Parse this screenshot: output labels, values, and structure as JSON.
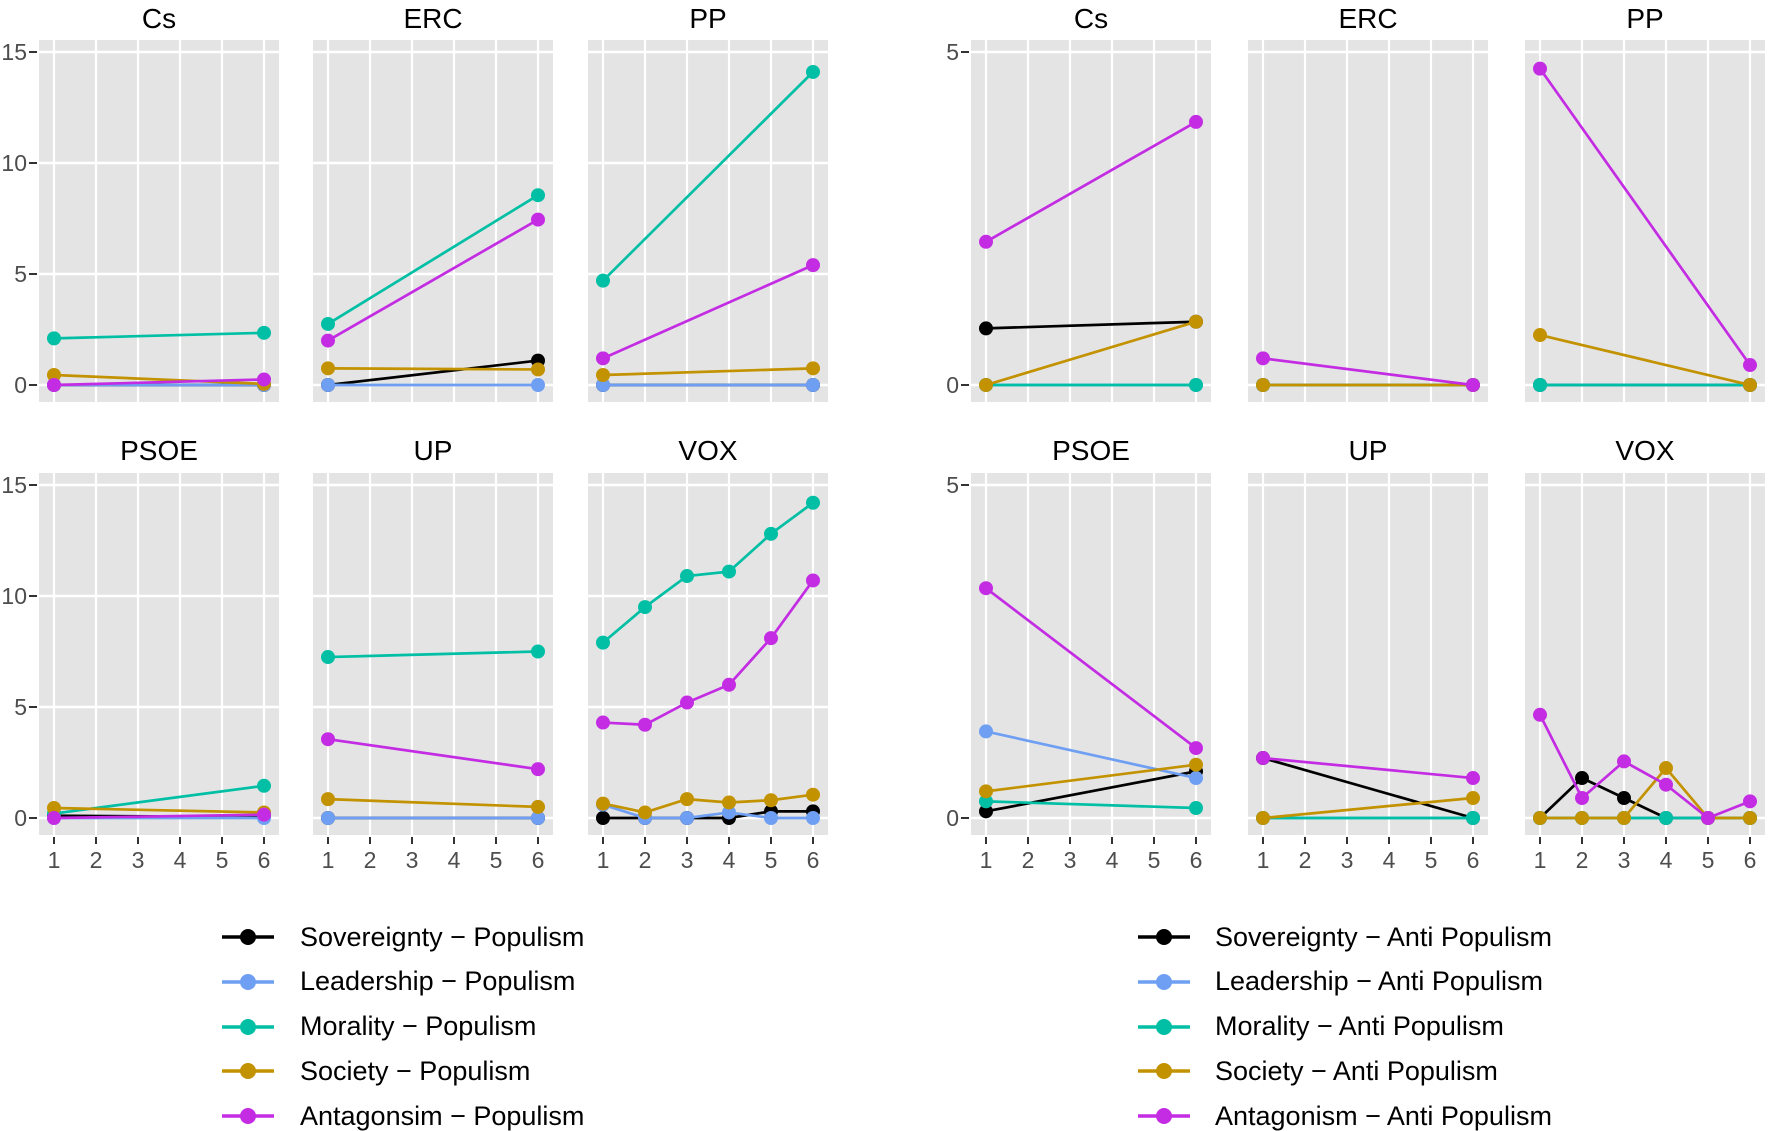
{
  "colors": {
    "sovereignty": "#000000",
    "leadership": "#6F9FF3",
    "morality": "#00BFA4",
    "society": "#C39200",
    "antagonism": "#C32CE3"
  },
  "style": {
    "panel_bg": "#E4E4E4",
    "grid_color": "#FFFFFF",
    "tick_text_color": "#4D4D4D"
  },
  "draw_order": [
    "sovereignty",
    "leadership",
    "morality",
    "society",
    "antagonism"
  ],
  "chart_data": [
    {
      "type": "line",
      "group": "Populism",
      "ylim": [
        0,
        15
      ],
      "yticks": [
        0,
        5,
        10,
        15
      ],
      "xticks": [
        1,
        2,
        3,
        4,
        5,
        6
      ],
      "grid": "major-only",
      "legend_position": "bottom-left",
      "legend": [
        {
          "key": "sovereignty",
          "label": "Sovereignty − Populism"
        },
        {
          "key": "leadership",
          "label": "Leadership − Populism"
        },
        {
          "key": "morality",
          "label": "Morality − Populism"
        },
        {
          "key": "society",
          "label": "Society − Populism"
        },
        {
          "key": "antagonism",
          "label": "Antagonsim − Populism"
        }
      ],
      "panels": [
        {
          "title": "Cs",
          "x": [
            1,
            6
          ],
          "series": {
            "sovereignty": [
              0,
              0
            ],
            "leadership": [
              0,
              0
            ],
            "morality": [
              2.1,
              2.35
            ],
            "society": [
              0.45,
              0.05
            ],
            "antagonism": [
              0,
              0.25
            ]
          }
        },
        {
          "title": "ERC",
          "x": [
            1,
            6
          ],
          "series": {
            "sovereignty": [
              0,
              1.1
            ],
            "leadership": [
              0,
              0
            ],
            "morality": [
              2.75,
              8.55
            ],
            "society": [
              0.75,
              0.7
            ],
            "antagonism": [
              2.0,
              7.45
            ]
          }
        },
        {
          "title": "PP",
          "x": [
            1,
            6
          ],
          "series": {
            "sovereignty": [
              0,
              0
            ],
            "leadership": [
              0,
              0
            ],
            "morality": [
              4.7,
              14.1
            ],
            "society": [
              0.45,
              0.75
            ],
            "antagonism": [
              1.2,
              5.4
            ]
          }
        },
        {
          "title": "PSOE",
          "x": [
            1,
            6
          ],
          "series": {
            "sovereignty": [
              0.1,
              0.05
            ],
            "leadership": [
              0,
              0
            ],
            "morality": [
              0.2,
              1.45
            ],
            "society": [
              0.45,
              0.25
            ],
            "antagonism": [
              0,
              0.15
            ]
          }
        },
        {
          "title": "UP",
          "x": [
            1,
            6
          ],
          "series": {
            "sovereignty": [
              0,
              0
            ],
            "leadership": [
              0,
              0
            ],
            "morality": [
              7.25,
              7.5
            ],
            "society": [
              0.85,
              0.5
            ],
            "antagonism": [
              3.55,
              2.2
            ]
          }
        },
        {
          "title": "VOX",
          "x": [
            1,
            2,
            3,
            4,
            5,
            6
          ],
          "series": {
            "sovereignty": [
              0,
              0,
              0,
              0,
              0.3,
              0.3
            ],
            "leadership": [
              0.6,
              0,
              0,
              0.25,
              0,
              0
            ],
            "morality": [
              7.9,
              9.5,
              10.9,
              11.1,
              12.8,
              14.2
            ],
            "society": [
              0.65,
              0.25,
              0.85,
              0.7,
              0.8,
              1.05
            ],
            "antagonism": [
              4.3,
              4.2,
              5.2,
              6.0,
              8.1,
              10.7
            ]
          }
        }
      ]
    },
    {
      "type": "line",
      "group": "Anti Populism",
      "ylim": [
        0,
        5
      ],
      "yticks": [
        0,
        5
      ],
      "xticks": [
        1,
        2,
        3,
        4,
        5,
        6
      ],
      "grid": "major-only",
      "legend_position": "bottom-left",
      "legend": [
        {
          "key": "sovereignty",
          "label": "Sovereignty − Anti Populism"
        },
        {
          "key": "leadership",
          "label": "Leadership − Anti Populism"
        },
        {
          "key": "morality",
          "label": "Morality − Anti Populism"
        },
        {
          "key": "society",
          "label": "Society − Anti Populism"
        },
        {
          "key": "antagonism",
          "label": "Antagonism − Anti Populism"
        }
      ],
      "panels": [
        {
          "title": "Cs",
          "x": [
            1,
            6
          ],
          "series": {
            "sovereignty": [
              0.85,
              0.95
            ],
            "leadership": [
              0,
              0
            ],
            "morality": [
              0,
              0
            ],
            "society": [
              0,
              0.95
            ],
            "antagonism": [
              2.15,
              3.95
            ]
          }
        },
        {
          "title": "ERC",
          "x": [
            1,
            6
          ],
          "series": {
            "sovereignty": [
              0,
              0
            ],
            "leadership": [
              0,
              0
            ],
            "morality": [
              0,
              0
            ],
            "society": [
              0,
              0
            ],
            "antagonism": [
              0.4,
              0
            ]
          }
        },
        {
          "title": "PP",
          "x": [
            1,
            6
          ],
          "series": {
            "sovereignty": [
              0,
              0
            ],
            "leadership": [
              0,
              0
            ],
            "morality": [
              0,
              0
            ],
            "society": [
              0.75,
              0
            ],
            "antagonism": [
              4.75,
              0.3
            ]
          }
        },
        {
          "title": "PSOE",
          "x": [
            1,
            6
          ],
          "series": {
            "sovereignty": [
              0.1,
              0.7
            ],
            "leadership": [
              1.3,
              0.6
            ],
            "morality": [
              0.25,
              0.15
            ],
            "society": [
              0.4,
              0.8
            ],
            "antagonism": [
              3.45,
              1.05
            ]
          }
        },
        {
          "title": "UP",
          "x": [
            1,
            6
          ],
          "series": {
            "sovereignty": [
              0.9,
              0
            ],
            "leadership": [
              0,
              0
            ],
            "morality": [
              0,
              0
            ],
            "society": [
              0,
              0.3
            ],
            "antagonism": [
              0.9,
              0.6
            ]
          }
        },
        {
          "title": "VOX",
          "x": [
            1,
            2,
            3,
            4,
            5,
            6
          ],
          "series": {
            "sovereignty": [
              0,
              0.6,
              0.3,
              0,
              0,
              0
            ],
            "leadership": [
              0,
              0,
              0,
              0,
              0,
              0
            ],
            "morality": [
              0,
              0,
              0,
              0,
              0,
              0
            ],
            "society": [
              0,
              0,
              0,
              0.75,
              0,
              0
            ],
            "antagonism": [
              1.55,
              0.3,
              0.85,
              0.5,
              0,
              0.25
            ]
          }
        }
      ]
    }
  ]
}
